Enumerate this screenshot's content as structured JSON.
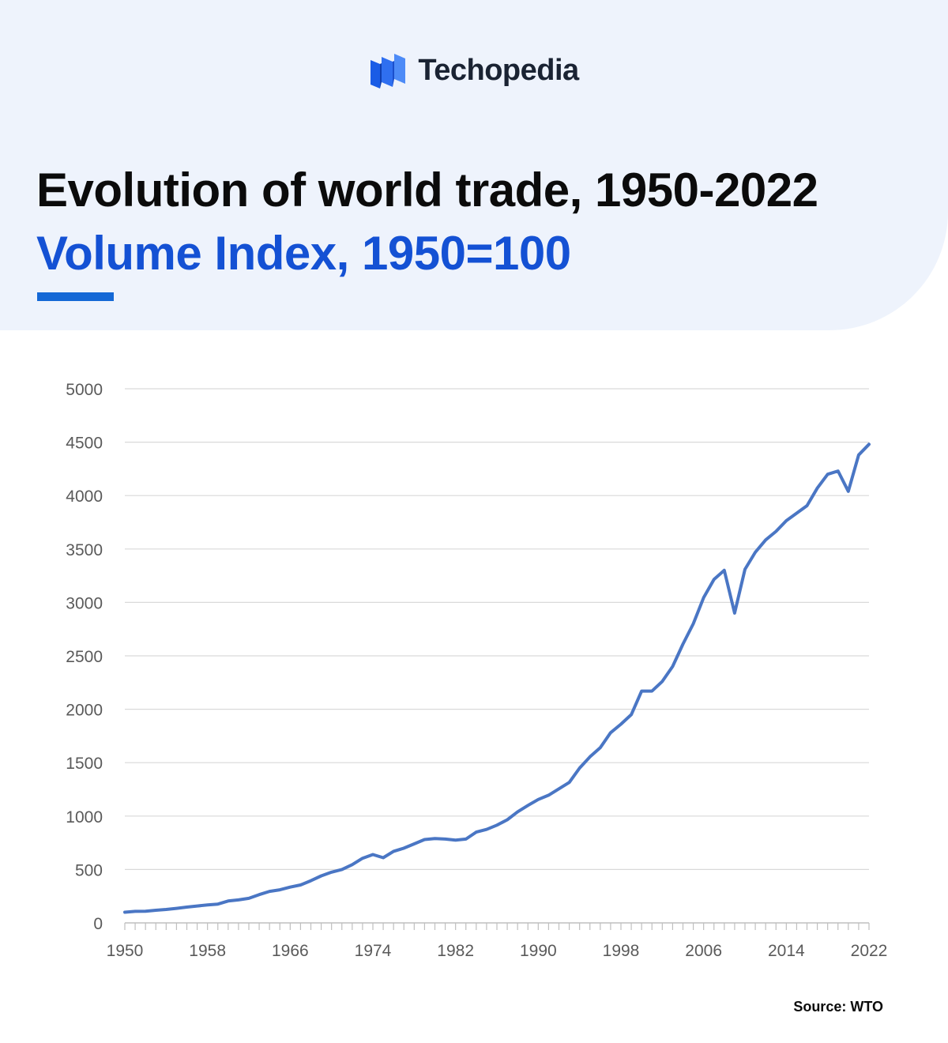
{
  "brand": {
    "name": "Techopedia",
    "logo_icon": "stacked-panels-logo-icon",
    "logo_color": "#1a5ce6"
  },
  "colors": {
    "header_bg": "#eef3fc",
    "title": "#0b0b0b",
    "subtitle": "#1451d4",
    "accent": "#1468d6",
    "line": "#4a76c4",
    "grid": "#d9d9d9",
    "axis_text": "#5a5a5a"
  },
  "source": "Source: WTO",
  "chart_data": {
    "type": "line",
    "title": "Evolution of world trade, 1950-2022",
    "subtitle": "Volume Index, 1950=100",
    "xlabel": "",
    "ylabel": "",
    "xlim": [
      1950,
      2022
    ],
    "ylim": [
      0,
      5000
    ],
    "yticks": [
      0,
      500,
      1000,
      1500,
      2000,
      2500,
      3000,
      3500,
      4000,
      4500,
      5000
    ],
    "xticks": [
      1950,
      1958,
      1966,
      1974,
      1982,
      1990,
      1998,
      2006,
      2014,
      2022
    ],
    "grid": true,
    "legend": "none",
    "x": [
      1950,
      1951,
      1952,
      1953,
      1954,
      1955,
      1956,
      1957,
      1958,
      1959,
      1960,
      1961,
      1962,
      1963,
      1964,
      1965,
      1966,
      1967,
      1968,
      1969,
      1970,
      1971,
      1972,
      1973,
      1974,
      1975,
      1976,
      1977,
      1978,
      1979,
      1980,
      1981,
      1982,
      1983,
      1984,
      1985,
      1986,
      1987,
      1988,
      1989,
      1990,
      1991,
      1992,
      1993,
      1994,
      1995,
      1996,
      1997,
      1998,
      1999,
      2000,
      2001,
      2002,
      2003,
      2004,
      2005,
      2006,
      2007,
      2008,
      2009,
      2010,
      2011,
      2012,
      2013,
      2014,
      2015,
      2016,
      2017,
      2018,
      2019,
      2020,
      2021,
      2022
    ],
    "series": [
      {
        "values": [
          100,
          108,
          109,
          118,
          126,
          136,
          148,
          158,
          168,
          176,
          205,
          215,
          230,
          265,
          295,
          310,
          335,
          355,
          395,
          440,
          475,
          500,
          545,
          605,
          640,
          610,
          670,
          700,
          740,
          780,
          790,
          785,
          775,
          785,
          850,
          875,
          915,
          965,
          1040,
          1100,
          1155,
          1195,
          1255,
          1315,
          1450,
          1555,
          1640,
          1780,
          1860,
          1950,
          2170,
          2170,
          2260,
          2400,
          2610,
          2800,
          3045,
          3215,
          3300,
          2900,
          3310,
          3470,
          3585,
          3665,
          3765,
          3835,
          3905,
          4070,
          4200,
          4230,
          4040,
          4380,
          4480
        ]
      }
    ]
  }
}
